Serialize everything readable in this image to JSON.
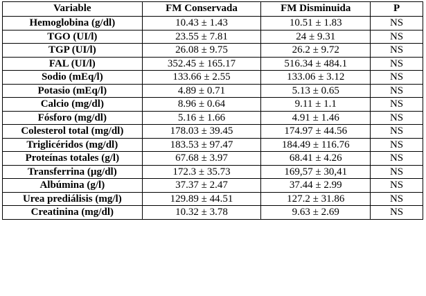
{
  "headers": [
    "Variable",
    "FM Conservada",
    "FM Disminuida",
    "P"
  ],
  "rows": [
    {
      "variable": "Hemoglobina (g/dl)",
      "fm_conservada": "10.43 ± 1.43",
      "fm_disminuida": "10.51 ± 1.83",
      "p": "NS"
    },
    {
      "variable": "TGO (UI/l)",
      "fm_conservada": "23.55 ± 7.81",
      "fm_disminuida": "24 ± 9.31",
      "p": "NS"
    },
    {
      "variable": "TGP (UI/l)",
      "fm_conservada": "26.08 ± 9.75",
      "fm_disminuida": "26.2 ± 9.72",
      "p": "NS"
    },
    {
      "variable": "FAL (UI/l)",
      "fm_conservada": "352.45 ± 165.17",
      "fm_disminuida": "516.34 ± 484.1",
      "p": "NS"
    },
    {
      "variable": "Sodio (mEq/l)",
      "fm_conservada": "133.66 ± 2.55",
      "fm_disminuida": "133.06 ± 3.12",
      "p": "NS"
    },
    {
      "variable": "Potasio (mEq/l)",
      "fm_conservada": "4.89 ± 0.71",
      "fm_disminuida": "5.13 ± 0.65",
      "p": "NS"
    },
    {
      "variable": "Calcio (mg/dl)",
      "fm_conservada": "8.96 ± 0.64",
      "fm_disminuida": "9.11 ± 1.1",
      "p": "NS"
    },
    {
      "variable": "Fósforo (mg/dl)",
      "fm_conservada": "5.16 ± 1.66",
      "fm_disminuida": "4.91 ± 1.46",
      "p": "NS"
    },
    {
      "variable": "Colesterol total (mg/dl)",
      "fm_conservada": "178.03 ± 39.45",
      "fm_disminuida": "174.97 ± 44.56",
      "p": "NS"
    },
    {
      "variable": "Triglicéridos (mg/dl)",
      "fm_conservada": "183.53 ± 97.47",
      "fm_disminuida": "184.49 ± 116.76",
      "p": "NS"
    },
    {
      "variable": "Proteínas totales (g/l)",
      "fm_conservada": "67.68 ± 3.97",
      "fm_disminuida": "68.41 ± 4.26",
      "p": "NS"
    },
    {
      "variable": "Transferrina (µg/dl)",
      "fm_conservada": "172.3 ± 35.73",
      "fm_disminuida": "169,57 ± 30,41",
      "p": "NS"
    },
    {
      "variable": "Albúmina (g/l)",
      "fm_conservada": "37.37 ± 2.47",
      "fm_disminuida": "37.44 ± 2.99",
      "p": "NS"
    },
    {
      "variable": "Urea prediálisis (mg/l)",
      "fm_conservada": "129.89 ± 44.51",
      "fm_disminuida": "127.2 ± 31.86",
      "p": "NS"
    },
    {
      "variable": "Creatinina (mg/dl)",
      "fm_conservada": "10.32 ± 3.78",
      "fm_disminuida": "9.63 ± 2.69",
      "p": "NS"
    }
  ]
}
